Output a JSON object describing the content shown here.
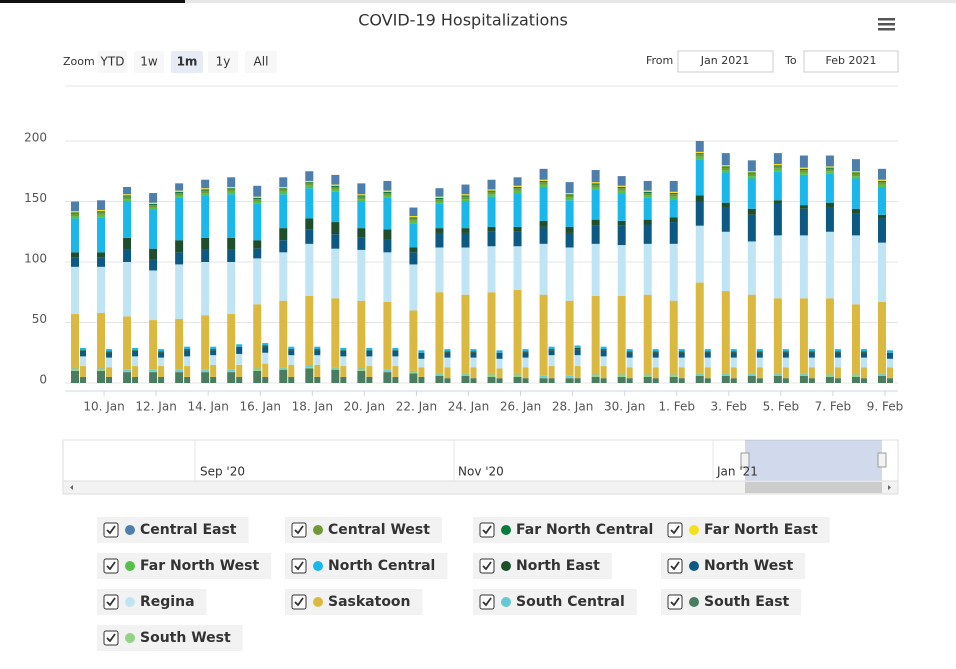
{
  "chart_data": {
    "type": "stacked-bar",
    "title": "COVID-19 Hospitalizations",
    "categories": [
      null,
      "10. Jan",
      null,
      "12. Jan",
      null,
      "14. Jan",
      null,
      "16. Jan",
      null,
      "18. Jan",
      null,
      "20. Jan",
      null,
      "22. Jan",
      null,
      "24. Jan",
      null,
      "26. Jan",
      null,
      "28. Jan",
      null,
      "30. Jan",
      null,
      "1. Feb",
      null,
      "3. Feb",
      null,
      "5. Feb",
      null,
      "7. Feb",
      null,
      "9. Feb"
    ],
    "ylim": [
      0,
      200
    ],
    "yticks": [
      0,
      50,
      100,
      150,
      200
    ],
    "grid": true,
    "series": [
      {
        "name": "South East",
        "color": "#4a7d5f",
        "values": [
          10,
          10,
          9,
          9,
          9,
          9,
          9,
          10,
          11,
          12,
          11,
          10,
          9,
          8,
          6,
          6,
          5,
          5,
          4,
          4,
          5,
          5,
          5,
          5,
          6,
          6,
          6,
          6,
          6,
          5,
          5,
          6
        ],
        "icu_values": [
          5,
          5,
          5,
          5,
          5,
          5,
          5,
          5,
          5,
          5,
          5,
          5,
          5,
          5,
          4,
          4,
          4,
          4,
          4,
          4,
          4,
          4,
          4,
          4,
          4,
          4,
          4,
          4,
          4,
          4,
          4,
          4
        ]
      },
      {
        "name": "South West",
        "color": "#90d383",
        "values": [
          1,
          1,
          1,
          1,
          1,
          1,
          1,
          1,
          1,
          1,
          1,
          1,
          1,
          1,
          1,
          1,
          1,
          1,
          1,
          1,
          1,
          1,
          1,
          1,
          1,
          1,
          1,
          1,
          1,
          1,
          1,
          1
        ],
        "icu_values": [
          0,
          0,
          0,
          0,
          0,
          0,
          0,
          0,
          0,
          0,
          0,
          0,
          0,
          0,
          0,
          0,
          0,
          0,
          0,
          0,
          0,
          0,
          0,
          0,
          0,
          0,
          0,
          0,
          0,
          0,
          0,
          0
        ]
      },
      {
        "name": "South Central",
        "color": "#66c9d1",
        "values": [
          1,
          1,
          1,
          1,
          1,
          1,
          1,
          1,
          1,
          1,
          1,
          1,
          1,
          1,
          1,
          1,
          1,
          1,
          1,
          1,
          1,
          1,
          1,
          1,
          1,
          1,
          1,
          1,
          1,
          1,
          1,
          1
        ],
        "icu_values": [
          0,
          0,
          0,
          0,
          0,
          0,
          0,
          0,
          0,
          0,
          0,
          0,
          0,
          0,
          0,
          0,
          0,
          0,
          0,
          0,
          0,
          0,
          0,
          0,
          0,
          0,
          0,
          0,
          0,
          0,
          0,
          0
        ]
      },
      {
        "name": "Saskatoon",
        "color": "#dbb940",
        "values": [
          45,
          46,
          44,
          41,
          42,
          45,
          46,
          53,
          55,
          58,
          57,
          56,
          56,
          50,
          67,
          65,
          68,
          70,
          67,
          62,
          65,
          65,
          66,
          61,
          75,
          68,
          65,
          62,
          62,
          63,
          58,
          59
        ],
        "icu_values": [
          9,
          8,
          9,
          9,
          9,
          10,
          10,
          11,
          10,
          10,
          9,
          9,
          9,
          8,
          9,
          9,
          8,
          9,
          10,
          10,
          10,
          9,
          9,
          9,
          9,
          9,
          9,
          9,
          9,
          9,
          9,
          9
        ]
      },
      {
        "name": "Regina",
        "color": "#bfe4f3",
        "values": [
          39,
          38,
          45,
          41,
          45,
          44,
          43,
          38,
          40,
          43,
          41,
          42,
          41,
          38,
          37,
          39,
          38,
          36,
          42,
          44,
          43,
          42,
          42,
          47,
          47,
          49,
          44,
          52,
          52,
          55,
          57,
          49
        ],
        "icu_values": [
          8,
          8,
          8,
          7,
          8,
          8,
          9,
          9,
          8,
          8,
          8,
          8,
          8,
          7,
          8,
          8,
          8,
          8,
          9,
          9,
          8,
          8,
          8,
          8,
          8,
          8,
          8,
          8,
          8,
          8,
          8,
          7
        ]
      },
      {
        "name": "North West",
        "color": "#0c5984",
        "values": [
          8,
          8,
          10,
          9,
          10,
          10,
          10,
          8,
          10,
          12,
          12,
          10,
          11,
          10,
          12,
          12,
          12,
          12,
          14,
          12,
          15,
          16,
          16,
          18,
          20,
          20,
          22,
          26,
          22,
          20,
          18,
          20
        ],
        "icu_values": [
          4,
          4,
          4,
          4,
          5,
          4,
          5,
          5,
          4,
          4,
          4,
          4,
          4,
          4,
          4,
          4,
          4,
          4,
          4,
          5,
          5,
          4,
          4,
          4,
          4,
          4,
          4,
          4,
          4,
          4,
          4,
          4
        ]
      },
      {
        "name": "North East",
        "color": "#1f4e2c",
        "values": [
          4,
          4,
          10,
          9,
          10,
          10,
          10,
          7,
          10,
          9,
          10,
          8,
          8,
          4,
          4,
          4,
          4,
          4,
          5,
          5,
          5,
          4,
          4,
          4,
          5,
          4,
          5,
          3,
          3,
          4,
          4,
          3
        ],
        "icu_values": [
          1,
          1,
          1,
          1,
          1,
          1,
          1,
          1,
          1,
          1,
          1,
          1,
          1,
          1,
          1,
          1,
          1,
          1,
          1,
          1,
          1,
          1,
          1,
          1,
          1,
          1,
          1,
          1,
          1,
          1,
          1,
          1
        ]
      },
      {
        "name": "North Central",
        "color": "#1ab7ea",
        "values": [
          28,
          29,
          30,
          32,
          35,
          35,
          36,
          30,
          28,
          25,
          25,
          22,
          26,
          20,
          20,
          22,
          25,
          28,
          28,
          22,
          25,
          23,
          18,
          15,
          30,
          25,
          25,
          24,
          25,
          24,
          25,
          23
        ],
        "icu_values": [
          2,
          2,
          2,
          2,
          2,
          2,
          2,
          2,
          2,
          2,
          2,
          2,
          2,
          2,
          2,
          2,
          2,
          2,
          2,
          2,
          2,
          2,
          2,
          2,
          2,
          2,
          2,
          2,
          2,
          2,
          2,
          2
        ]
      },
      {
        "name": "Far North West",
        "color": "#56c14a",
        "values": [
          2,
          2,
          2,
          2,
          2,
          2,
          2,
          2,
          2,
          2,
          2,
          2,
          2,
          2,
          2,
          2,
          2,
          2,
          2,
          2,
          2,
          2,
          2,
          2,
          2,
          2,
          2,
          2,
          2,
          2,
          2,
          2
        ],
        "icu_values": [
          0,
          0,
          0,
          0,
          0,
          0,
          0,
          0,
          0,
          0,
          0,
          0,
          0,
          0,
          0,
          0,
          0,
          0,
          0,
          0,
          0,
          0,
          0,
          0,
          0,
          0,
          0,
          0,
          0,
          0,
          0,
          0
        ]
      },
      {
        "name": "Central West",
        "color": "#6f9a37",
        "values": [
          2,
          2,
          2,
          2,
          2,
          2,
          2,
          2,
          2,
          2,
          2,
          2,
          2,
          2,
          2,
          2,
          2,
          2,
          2,
          2,
          2,
          2,
          2,
          2,
          2,
          2,
          2,
          2,
          2,
          2,
          2,
          2
        ],
        "icu_values": [
          0,
          0,
          0,
          0,
          0,
          0,
          0,
          0,
          0,
          0,
          0,
          0,
          0,
          0,
          0,
          0,
          0,
          0,
          0,
          0,
          0,
          0,
          0,
          0,
          0,
          0,
          0,
          0,
          0,
          0,
          0,
          0
        ]
      },
      {
        "name": "Far North Central",
        "color": "#0a7a3d",
        "values": [
          1,
          1,
          1,
          1,
          1,
          1,
          1,
          1,
          1,
          1,
          1,
          1,
          1,
          1,
          1,
          1,
          1,
          1,
          1,
          1,
          1,
          1,
          1,
          1,
          1,
          1,
          1,
          1,
          1,
          1,
          1,
          1
        ],
        "icu_values": [
          0,
          0,
          0,
          0,
          0,
          0,
          0,
          0,
          0,
          0,
          0,
          0,
          0,
          0,
          0,
          0,
          0,
          0,
          0,
          0,
          0,
          0,
          0,
          0,
          0,
          0,
          0,
          0,
          0,
          0,
          0,
          0
        ]
      },
      {
        "name": "Far North East",
        "color": "#f4e11b",
        "values": [
          1,
          1,
          1,
          1,
          1,
          1,
          1,
          1,
          1,
          1,
          1,
          1,
          1,
          1,
          1,
          1,
          1,
          1,
          1,
          1,
          1,
          1,
          1,
          1,
          1,
          1,
          1,
          1,
          1,
          1,
          1,
          1
        ],
        "icu_values": [
          0,
          0,
          0,
          0,
          0,
          0,
          0,
          0,
          0,
          0,
          0,
          0,
          0,
          0,
          0,
          0,
          0,
          0,
          0,
          0,
          0,
          0,
          0,
          0,
          0,
          0,
          0,
          0,
          0,
          0,
          0,
          0
        ]
      },
      {
        "name": "Central East",
        "color": "#4e7fac",
        "values": [
          8,
          8,
          6,
          8,
          6,
          7,
          8,
          9,
          8,
          8,
          8,
          9,
          8,
          7,
          7,
          8,
          8,
          7,
          9,
          9,
          10,
          8,
          8,
          9,
          9,
          10,
          9,
          9,
          10,
          9,
          10,
          9
        ],
        "icu_values": [
          0,
          0,
          0,
          0,
          0,
          0,
          0,
          0,
          0,
          0,
          0,
          0,
          0,
          0,
          0,
          0,
          0,
          0,
          0,
          0,
          0,
          0,
          0,
          0,
          0,
          0,
          0,
          0,
          0,
          0,
          0,
          0
        ]
      }
    ],
    "navigator_labels": [
      "Sep '20",
      "Nov '20",
      "Jan '21"
    ]
  },
  "zoom": {
    "label": "Zoom",
    "buttons": [
      "YTD",
      "1w",
      "1m",
      "1y",
      "All"
    ]
  },
  "range": {
    "from_label": "From",
    "from": "Jan 2021",
    "to_label": "To",
    "to": "Feb 2021"
  }
}
